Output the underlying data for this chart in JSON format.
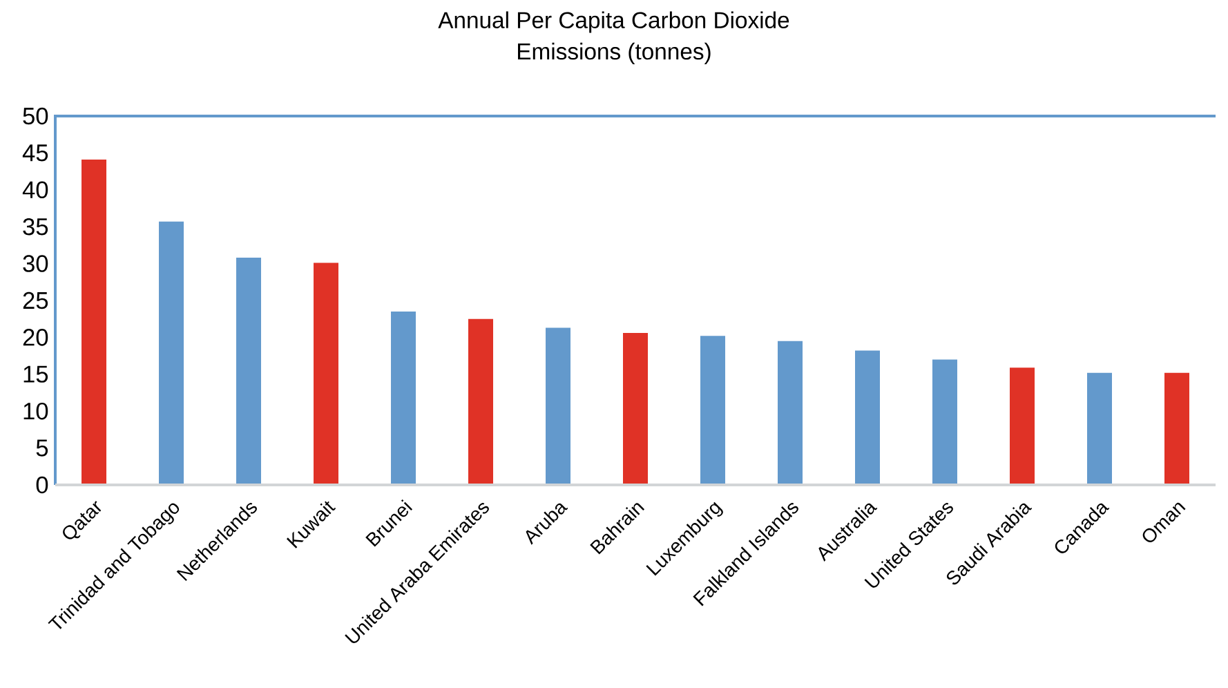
{
  "chart_data": {
    "type": "bar",
    "title": "Annual Per Capita Carbon Dioxide\nEmissions (tonnes)",
    "categories": [
      "Qatar",
      "Trinidad and Tobago",
      "Netherlands",
      "Kuwait",
      "Brunei",
      "United Araba Emirates",
      "Aruba",
      "Bahrain",
      "Luxemburg",
      "Falkland Islands",
      "Australia",
      "United States",
      "Saudi Arabia",
      "Canada",
      "Oman"
    ],
    "values": [
      44.1,
      35.7,
      30.8,
      30.1,
      23.5,
      22.5,
      21.3,
      20.6,
      20.2,
      19.5,
      18.2,
      17.0,
      15.9,
      15.2,
      15.2
    ],
    "colors": [
      "#e03226",
      "#6399cc",
      "#6399cc",
      "#e03226",
      "#6399cc",
      "#e03226",
      "#6399cc",
      "#e03226",
      "#6399cc",
      "#6399cc",
      "#6399cc",
      "#6399cc",
      "#e03226",
      "#6399cc",
      "#e03226"
    ],
    "ylim": [
      0,
      50
    ],
    "yticks": [
      0,
      5,
      10,
      15,
      20,
      25,
      30,
      35,
      40,
      45,
      50
    ],
    "grid": false
  }
}
